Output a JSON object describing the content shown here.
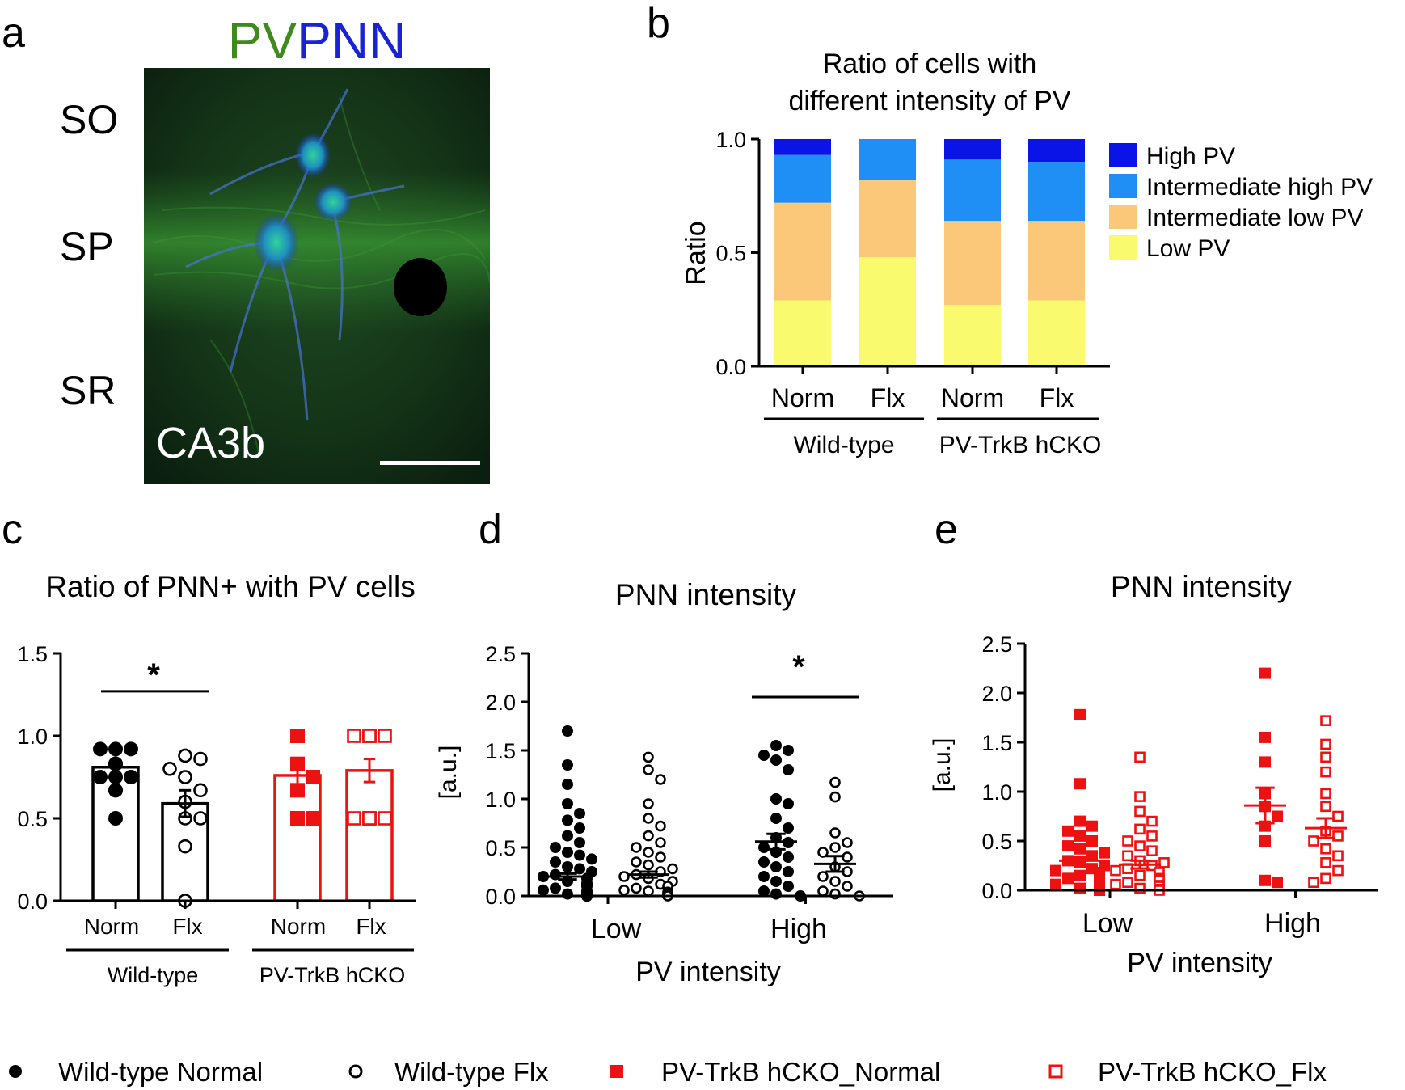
{
  "panel_labels": {
    "a": "a",
    "b": "b",
    "c": "c",
    "d": "d",
    "e": "e"
  },
  "panel_a": {
    "title_pv": "PV",
    "title_pnn": "PNN",
    "layers": [
      "SO",
      "SP",
      "SR"
    ],
    "region": "CA3b",
    "colors": {
      "pv": "#3f8a1e",
      "pnn": "#1a22d6"
    }
  },
  "legend_bottom": [
    {
      "label": "Wild-type Normal",
      "marker": "circle-filled",
      "color": "#000000"
    },
    {
      "label": "Wild-type Flx",
      "marker": "circle-open",
      "color": "#000000"
    },
    {
      "label": "PV-TrkB hCKO_Normal",
      "marker": "square-filled",
      "color": "#ee1111"
    },
    {
      "label": "PV-TrkB hCKO_Flx",
      "marker": "square-open",
      "color": "#ee1111"
    }
  ],
  "chart_data": [
    {
      "id": "b",
      "type": "bar",
      "stacked": true,
      "title": "Ratio of cells with\ndifferent intensity of PV",
      "title_lines": [
        "Ratio of cells with",
        "different intensity of PV"
      ],
      "ylabel": "Ratio",
      "ylim": [
        0,
        1
      ],
      "yticks": [
        "0.0",
        "0.5",
        "1.0"
      ],
      "categories": [
        "Norm",
        "Flx",
        "Norm",
        "Flx"
      ],
      "groups": [
        {
          "label": "Wild-type",
          "categories": [
            0,
            1
          ]
        },
        {
          "label": "PV-TrkB hCKO",
          "categories": [
            2,
            3
          ]
        }
      ],
      "legend_position": "right",
      "series": [
        {
          "name": "Low PV",
          "color": "#fafa6e",
          "values": [
            0.29,
            0.48,
            0.27,
            0.29
          ]
        },
        {
          "name": "Intermediate low PV",
          "color": "#fac878",
          "values": [
            0.43,
            0.34,
            0.37,
            0.35
          ]
        },
        {
          "name": "Intermediate high PV",
          "color": "#1f8ff5",
          "values": [
            0.21,
            0.18,
            0.27,
            0.26
          ]
        },
        {
          "name": "High PV",
          "color": "#0a14e6",
          "values": [
            0.07,
            0.0,
            0.09,
            0.1
          ]
        }
      ],
      "legend_order": [
        "High PV",
        "Intermediate high PV",
        "Intermediate low PV",
        "Low PV"
      ]
    },
    {
      "id": "c",
      "type": "bar",
      "title": "Ratio of PNN+ with PV cells",
      "ylim": [
        0,
        1.5
      ],
      "yticks": [
        "0.0",
        "0.5",
        "1.0",
        "1.5"
      ],
      "categories": [
        "Norm",
        "Flx",
        "Norm",
        "Flx"
      ],
      "groups": [
        {
          "label": "Wild-type",
          "categories": [
            0,
            1
          ]
        },
        {
          "label": "PV-TrkB hCKO",
          "categories": [
            2,
            3
          ]
        }
      ],
      "significance": [
        {
          "between": [
            0,
            1
          ],
          "label": "*",
          "y": 1.27
        }
      ],
      "series": [
        {
          "name": "Wild-type Normal",
          "color": "#000000",
          "marker": "circle-filled",
          "mean": 0.81,
          "sem": 0.04,
          "points": [
            0.92,
            0.92,
            0.92,
            0.83,
            0.83,
            0.83,
            0.83,
            0.75,
            0.75,
            0.75,
            0.67,
            0.67,
            0.5
          ]
        },
        {
          "name": "Wild-type Flx",
          "color": "#000000",
          "marker": "circle-open",
          "mean": 0.59,
          "sem": 0.08,
          "points": [
            0.88,
            0.86,
            0.8,
            0.75,
            0.67,
            0.6,
            0.5,
            0.5,
            0.33,
            0.0
          ]
        },
        {
          "name": "PV-TrkB hCKO_Normal",
          "color": "#ee1111",
          "marker": "square-filled",
          "mean": 0.76,
          "sem": 0.07,
          "points": [
            1.0,
            0.83,
            0.75,
            0.67,
            0.5,
            0.5
          ]
        },
        {
          "name": "PV-TrkB hCKO_Flx",
          "color": "#ee1111",
          "marker": "square-open",
          "mean": 0.79,
          "sem": 0.07,
          "points": [
            1.0,
            1.0,
            1.0,
            1.0,
            1.0,
            0.5,
            0.5,
            0.5,
            0.5,
            0.5
          ]
        }
      ]
    },
    {
      "id": "d",
      "type": "scatter",
      "title": "PNN intensity",
      "xlabel": "PV intensity",
      "ylabel": "[a.u.]",
      "ylim": [
        0,
        2.5
      ],
      "yticks": [
        "0.0",
        "0.5",
        "1.0",
        "1.5",
        "2.0",
        "2.5"
      ],
      "categories": [
        "Low",
        "High"
      ],
      "significance": [
        {
          "between": [
            "High-Normal",
            "High-Flx"
          ],
          "label": "*",
          "y": 2.05
        }
      ],
      "series": [
        {
          "name": "Low / Wild-type Normal",
          "group": "Low",
          "color": "#000000",
          "marker": "circle-filled",
          "mean": 0.2,
          "sem": 0.03,
          "points": [
            1.7,
            1.35,
            1.15,
            0.95,
            0.85,
            0.78,
            0.7,
            0.62,
            0.55,
            0.5,
            0.45,
            0.42,
            0.38,
            0.35,
            0.3,
            0.28,
            0.25,
            0.22,
            0.2,
            0.18,
            0.15,
            0.13,
            0.12,
            0.1,
            0.08,
            0.06,
            0.05,
            0.04,
            0.03,
            0.02,
            0.02,
            0.01,
            0.01,
            0.0,
            0.0,
            0.0,
            0.0,
            0.0,
            0.0,
            0.0
          ]
        },
        {
          "name": "Low / Wild-type Flx",
          "group": "Low",
          "color": "#000000",
          "marker": "circle-open",
          "mean": 0.22,
          "sem": 0.03,
          "points": [
            1.43,
            1.3,
            1.2,
            0.95,
            0.8,
            0.72,
            0.62,
            0.55,
            0.5,
            0.45,
            0.4,
            0.35,
            0.32,
            0.28,
            0.25,
            0.22,
            0.2,
            0.18,
            0.15,
            0.12,
            0.1,
            0.08,
            0.06,
            0.05,
            0.04,
            0.03,
            0.02,
            0.01,
            0.0,
            0.0
          ]
        },
        {
          "name": "High / Wild-type Normal",
          "group": "High",
          "color": "#000000",
          "marker": "circle-filled",
          "mean": 0.56,
          "sem": 0.08,
          "points": [
            1.55,
            1.5,
            1.45,
            1.4,
            1.3,
            1.0,
            0.95,
            0.8,
            0.7,
            0.6,
            0.55,
            0.5,
            0.45,
            0.4,
            0.35,
            0.3,
            0.25,
            0.2,
            0.15,
            0.1,
            0.05,
            0.02,
            0.0
          ]
        },
        {
          "name": "High / Wild-type Flx",
          "group": "High",
          "color": "#000000",
          "marker": "circle-open",
          "mean": 0.33,
          "sem": 0.08,
          "points": [
            1.17,
            1.02,
            0.65,
            0.55,
            0.5,
            0.45,
            0.4,
            0.3,
            0.25,
            0.2,
            0.15,
            0.1,
            0.05,
            0.02,
            0.0
          ]
        }
      ]
    },
    {
      "id": "e",
      "type": "scatter",
      "title": "PNN intensity",
      "xlabel": "PV intensity",
      "ylabel": "[a.u.]",
      "ylim": [
        0,
        2.5
      ],
      "yticks": [
        "0.0",
        "0.5",
        "1.0",
        "1.5",
        "2.0",
        "2.5"
      ],
      "categories": [
        "Low",
        "High"
      ],
      "series": [
        {
          "name": "Low / PV-TrkB hCKO_Normal",
          "group": "Low",
          "color": "#ee1111",
          "marker": "square-filled",
          "mean": 0.3,
          "sem": 0.04,
          "points": [
            1.78,
            1.08,
            0.7,
            0.65,
            0.6,
            0.55,
            0.5,
            0.45,
            0.42,
            0.38,
            0.35,
            0.3,
            0.28,
            0.25,
            0.22,
            0.2,
            0.18,
            0.15,
            0.12,
            0.1,
            0.08,
            0.06,
            0.05,
            0.04,
            0.03,
            0.02,
            0.01,
            0.0
          ]
        },
        {
          "name": "Low / PV-TrkB hCKO_Flx",
          "group": "Low",
          "color": "#ee1111",
          "marker": "square-open",
          "mean": 0.26,
          "sem": 0.04,
          "points": [
            1.35,
            0.95,
            0.8,
            0.7,
            0.62,
            0.55,
            0.5,
            0.45,
            0.4,
            0.35,
            0.3,
            0.28,
            0.25,
            0.22,
            0.2,
            0.18,
            0.15,
            0.12,
            0.1,
            0.08,
            0.06,
            0.05,
            0.04,
            0.02,
            0.01,
            0.0
          ]
        },
        {
          "name": "High / PV-TrkB hCKO_Normal",
          "group": "High",
          "color": "#ee1111",
          "marker": "square-filled",
          "mean": 0.86,
          "sem": 0.18,
          "points": [
            2.2,
            1.55,
            1.3,
            0.98,
            0.85,
            0.75,
            0.65,
            0.5,
            0.1,
            0.08
          ]
        },
        {
          "name": "High / PV-TrkB hCKO_Flx",
          "group": "High",
          "color": "#ee1111",
          "marker": "square-open",
          "mean": 0.63,
          "sem": 0.1,
          "points": [
            1.72,
            1.48,
            1.35,
            1.2,
            0.98,
            0.85,
            0.75,
            0.6,
            0.55,
            0.5,
            0.42,
            0.35,
            0.28,
            0.2,
            0.12,
            0.08
          ]
        }
      ]
    }
  ]
}
